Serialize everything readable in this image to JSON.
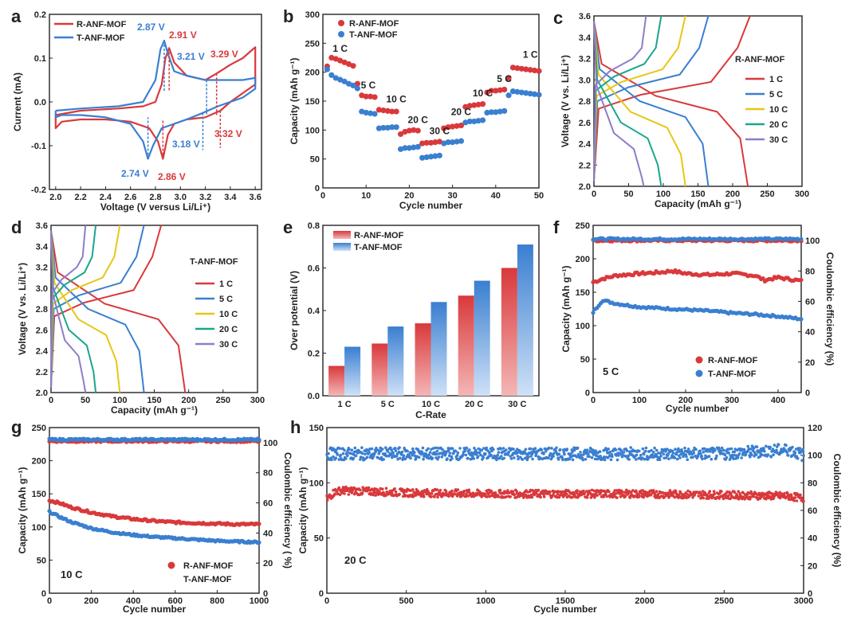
{
  "colors": {
    "red": "#d9393b",
    "blue": "#3a7fd0",
    "yellow": "#e8c617",
    "teal": "#1aa68b",
    "purple": "#8f7cc7"
  },
  "panels": {
    "a": {
      "letter": "a",
      "legend": [
        "R-ANF-MOF",
        "T-ANF-MOF"
      ],
      "annotations": [
        "2.87 V",
        "2.91 V",
        "3.21 V",
        "3.29 V",
        "3.18 V",
        "3.32 V",
        "2.74 V",
        "2.86 V"
      ]
    },
    "b": {
      "letter": "b",
      "legend": [
        "R-ANF-MOF",
        "T-ANF-MOF"
      ],
      "rate_labels": [
        "1 C",
        "5 C",
        "10 C",
        "20 C",
        "30 C",
        "20 C",
        "10 C",
        "5 C",
        "1 C"
      ]
    },
    "c": {
      "letter": "c",
      "sample": "R-ANF-MOF",
      "legend": [
        "1 C",
        "5 C",
        "10 C",
        "20 C",
        "30 C"
      ]
    },
    "d": {
      "letter": "d",
      "sample": "T-ANF-MOF",
      "legend": [
        "1 C",
        "5 C",
        "10 C",
        "20 C",
        "30 C"
      ]
    },
    "e": {
      "letter": "e",
      "legend": [
        "R-ANF-MOF",
        "T-ANF-MOF"
      ]
    },
    "f": {
      "letter": "f",
      "legend": [
        "R-ANF-MOF",
        "T-ANF-MOF"
      ],
      "rate": "5 C"
    },
    "g": {
      "letter": "g",
      "legend": [
        "R-ANF-MOF",
        "T-ANF-MOF"
      ],
      "rate": "10 C"
    },
    "h": {
      "letter": "h",
      "rate": "20 C"
    }
  },
  "chart_data": [
    {
      "id": "a",
      "type": "line",
      "title": "",
      "xlabel": "Voltage (V versus Li/Li⁺)",
      "ylabel": "Current (mA)",
      "xlim": [
        1.95,
        3.65
      ],
      "ylim": [
        -0.2,
        0.2
      ],
      "xticks": [
        "2.0",
        "2.2",
        "2.4",
        "2.6",
        "2.8",
        "3.0",
        "3.2",
        "3.4",
        "3.6"
      ],
      "yticks": [
        "-0.2",
        "-0.1",
        "0.0",
        "0.1",
        "0.2"
      ],
      "series": [
        {
          "name": "R-ANF-MOF",
          "x": [
            2.0,
            2.2,
            2.5,
            2.7,
            2.8,
            2.85,
            2.88,
            2.91,
            2.95,
            3.05,
            3.2,
            3.29,
            3.4,
            3.5,
            3.58,
            3.6,
            3.6,
            3.5,
            3.4,
            3.32,
            3.2,
            3.05,
            2.95,
            2.9,
            2.86,
            2.82,
            2.75,
            2.6,
            2.4,
            2.2,
            2.05,
            2.0,
            2.0
          ],
          "y": [
            -0.03,
            -0.02,
            -0.015,
            -0.01,
            0.0,
            0.04,
            0.1,
            0.123,
            0.09,
            0.06,
            0.05,
            0.065,
            0.085,
            0.1,
            0.12,
            0.125,
            0.04,
            0.02,
            0.0,
            -0.02,
            -0.035,
            -0.04,
            -0.05,
            -0.075,
            -0.13,
            -0.09,
            -0.06,
            -0.045,
            -0.04,
            -0.04,
            -0.045,
            -0.06,
            -0.03
          ]
        },
        {
          "name": "T-ANF-MOF",
          "x": [
            2.0,
            2.2,
            2.5,
            2.7,
            2.8,
            2.84,
            2.87,
            2.9,
            2.95,
            3.05,
            3.2,
            3.3,
            3.4,
            3.5,
            3.6,
            3.6,
            3.5,
            3.4,
            3.3,
            3.18,
            3.05,
            2.95,
            2.85,
            2.78,
            2.74,
            2.7,
            2.6,
            2.4,
            2.2,
            2.05,
            2.0,
            2.0
          ],
          "y": [
            -0.02,
            -0.015,
            -0.01,
            0.0,
            0.05,
            0.12,
            0.14,
            0.11,
            0.07,
            0.06,
            0.05,
            0.05,
            0.05,
            0.05,
            0.055,
            0.03,
            0.01,
            0.0,
            -0.01,
            -0.025,
            -0.04,
            -0.05,
            -0.06,
            -0.1,
            -0.13,
            -0.09,
            -0.05,
            -0.035,
            -0.03,
            -0.03,
            -0.035,
            -0.02
          ]
        }
      ]
    },
    {
      "id": "b",
      "type": "scatter",
      "title": "",
      "xlabel": "Cycle number",
      "ylabel": "Capacity (mAh g⁻¹)",
      "xlim": [
        0,
        50
      ],
      "ylim": [
        0,
        300
      ],
      "xticks": [
        "0",
        "10",
        "20",
        "30",
        "40",
        "50"
      ],
      "yticks": [
        "0",
        "50",
        "100",
        "150",
        "200",
        "250",
        "300"
      ],
      "series": [
        {
          "name": "R-ANF-MOF",
          "x": [
            1,
            2,
            3,
            4,
            5,
            6,
            7,
            8,
            9,
            10,
            11,
            12,
            13,
            14,
            15,
            16,
            17,
            18,
            19,
            20,
            21,
            22,
            23,
            24,
            25,
            26,
            27,
            28,
            29,
            30,
            31,
            32,
            33,
            34,
            35,
            36,
            37,
            38,
            39,
            40,
            41,
            42,
            43,
            44,
            45,
            46,
            47,
            48,
            49,
            50
          ],
          "y": [
            210,
            225,
            223,
            220,
            217,
            214,
            211,
            180,
            160,
            158,
            158,
            157,
            135,
            134,
            133,
            132,
            132,
            93,
            97,
            99,
            100,
            99,
            77,
            78,
            78,
            79,
            80,
            103,
            105,
            106,
            107,
            108,
            140,
            142,
            143,
            144,
            145,
            165,
            168,
            168,
            169,
            170,
            190,
            208,
            207,
            206,
            205,
            204,
            203,
            202
          ]
        },
        {
          "name": "T-ANF-MOF",
          "x": [
            1,
            2,
            3,
            4,
            5,
            6,
            7,
            8,
            9,
            10,
            11,
            12,
            13,
            14,
            15,
            16,
            17,
            18,
            19,
            20,
            21,
            22,
            23,
            24,
            25,
            26,
            27,
            28,
            29,
            30,
            31,
            32,
            33,
            34,
            35,
            36,
            37,
            38,
            39,
            40,
            41,
            42,
            43,
            44,
            45,
            46,
            47,
            48,
            49,
            50
          ],
          "y": [
            205,
            195,
            190,
            187,
            184,
            180,
            177,
            172,
            132,
            130,
            129,
            128,
            103,
            104,
            104,
            105,
            105,
            67,
            69,
            69,
            70,
            71,
            52,
            53,
            54,
            55,
            56,
            77,
            79,
            79,
            80,
            81,
            113,
            115,
            115,
            116,
            117,
            130,
            131,
            131,
            132,
            133,
            160,
            167,
            166,
            165,
            164,
            163,
            162,
            161
          ]
        }
      ]
    },
    {
      "id": "c",
      "type": "line",
      "title": "R-ANF-MOF",
      "xlabel": "Capacity (mAh g⁻¹)",
      "ylabel": "Voltage (V vs. Li/Li⁺)",
      "xlim": [
        0,
        300
      ],
      "ylim": [
        2.0,
        3.6
      ],
      "xticks": [
        "0",
        "50",
        "100",
        "150",
        "200",
        "250",
        "300"
      ],
      "yticks": [
        "2.0",
        "2.2",
        "2.4",
        "2.6",
        "2.8",
        "3.0",
        "3.2",
        "3.4",
        "3.6"
      ],
      "series": [
        {
          "name": "1 C",
          "discharge_end": 222,
          "charge_end": 225
        },
        {
          "name": "5 C",
          "discharge_end": 165,
          "charge_end": 165
        },
        {
          "name": "10 C",
          "discharge_end": 132,
          "charge_end": 132
        },
        {
          "name": "20 C",
          "discharge_end": 97,
          "charge_end": 97
        },
        {
          "name": "30 C",
          "discharge_end": 72,
          "charge_end": 75
        }
      ]
    },
    {
      "id": "d",
      "type": "line",
      "title": "T-ANF-MOF",
      "xlabel": "Capacity (mAh g⁻¹)",
      "ylabel": "Voltage (V vs. Li/Li⁺)",
      "xlim": [
        0,
        300
      ],
      "ylim": [
        2.0,
        3.6
      ],
      "xticks": [
        "0",
        "50",
        "100",
        "150",
        "200",
        "250",
        "300"
      ],
      "yticks": [
        "2.0",
        "2.2",
        "2.4",
        "2.6",
        "2.8",
        "3.0",
        "3.2",
        "3.4",
        "3.6"
      ],
      "series": [
        {
          "name": "1 C",
          "discharge_end": 195,
          "charge_end": 160
        },
        {
          "name": "5 C",
          "discharge_end": 135,
          "charge_end": 135
        },
        {
          "name": "10 C",
          "discharge_end": 100,
          "charge_end": 100
        },
        {
          "name": "20 C",
          "discharge_end": 65,
          "charge_end": 65
        },
        {
          "name": "30 C",
          "discharge_end": 50,
          "charge_end": 50
        }
      ]
    },
    {
      "id": "e",
      "type": "bar",
      "title": "",
      "xlabel": "C-Rate",
      "ylabel": "Over potential (V)",
      "ylim": [
        0,
        0.8
      ],
      "yticks": [
        "0.0",
        "0.2",
        "0.4",
        "0.6",
        "0.8"
      ],
      "categories": [
        "1 C",
        "5 C",
        "10 C",
        "20 C",
        "30 C"
      ],
      "series": [
        {
          "name": "R-ANF-MOF",
          "values": [
            0.14,
            0.245,
            0.34,
            0.47,
            0.6
          ]
        },
        {
          "name": "T-ANF-MOF",
          "values": [
            0.23,
            0.325,
            0.44,
            0.54,
            0.71
          ]
        }
      ]
    },
    {
      "id": "f",
      "type": "scatter",
      "title": "",
      "xlabel": "Cycle number",
      "ylabel": "Capacity (mAh g⁻¹)",
      "y2label": "Coulombic efficiency (%)",
      "xlim": [
        0,
        450
      ],
      "ylim": [
        0,
        250
      ],
      "y2lim": [
        0,
        110
      ],
      "xticks": [
        "0",
        "100",
        "200",
        "300",
        "400"
      ],
      "yticks": [
        "0",
        "50",
        "100",
        "150",
        "200",
        "250"
      ],
      "y2ticks": [
        "0",
        "20",
        "40",
        "60",
        "80",
        "100"
      ],
      "series": [
        {
          "name": "R-ANF-MOF",
          "x": [
            0,
            20,
            50,
            100,
            150,
            170,
            200,
            250,
            300,
            350,
            370,
            400,
            450
          ],
          "y": [
            165,
            170,
            175,
            178,
            180,
            182,
            178,
            176,
            178,
            175,
            168,
            172,
            167
          ]
        },
        {
          "name": "T-ANF-MOF",
          "x": [
            0,
            20,
            50,
            100,
            150,
            200,
            250,
            300,
            350,
            400,
            450
          ],
          "y": [
            120,
            138,
            133,
            128,
            126,
            124,
            122,
            119,
            117,
            114,
            110
          ]
        },
        {
          "name": "R-ANF-MOF CE",
          "x": [
            0,
            450
          ],
          "y": [
            100,
            100
          ]
        },
        {
          "name": "T-ANF-MOF CE",
          "x": [
            0,
            450
          ],
          "y": [
            101,
            101
          ]
        }
      ]
    },
    {
      "id": "g",
      "type": "scatter",
      "title": "",
      "xlabel": "Cycle number",
      "ylabel": "Capacity (mAh g⁻¹)",
      "y2label": "Coulombic efficiency ( %)",
      "xlim": [
        0,
        1000
      ],
      "ylim": [
        0,
        250
      ],
      "y2lim": [
        0,
        110
      ],
      "xticks": [
        "0",
        "200",
        "400",
        "600",
        "800",
        "1000"
      ],
      "yticks": [
        "0",
        "50",
        "100",
        "150",
        "200",
        "250"
      ],
      "y2ticks": [
        "0",
        "20",
        "40",
        "60",
        "80",
        "100"
      ],
      "series": [
        {
          "name": "R-ANF-MOF",
          "x": [
            0,
            50,
            100,
            200,
            300,
            400,
            500,
            600,
            700,
            800,
            900,
            1000
          ],
          "y": [
            140,
            136,
            130,
            122,
            116,
            112,
            109,
            107,
            106,
            105,
            104,
            104
          ]
        },
        {
          "name": "T-ANF-MOF",
          "x": [
            0,
            50,
            100,
            200,
            300,
            400,
            500,
            600,
            700,
            800,
            900,
            1000
          ],
          "y": [
            123,
            115,
            108,
            98,
            92,
            88,
            85,
            83,
            81,
            79,
            78,
            77
          ]
        },
        {
          "name": "R-ANF-MOF CE",
          "x": [
            0,
            1000
          ],
          "y": [
            101,
            101
          ]
        },
        {
          "name": "T-ANF-MOF CE",
          "x": [
            0,
            1000
          ],
          "y": [
            102,
            102
          ]
        }
      ]
    },
    {
      "id": "h",
      "type": "scatter",
      "title": "",
      "xlabel": "Cycle number",
      "ylabel": "Capacity (mAh g⁻¹)",
      "y2label": "Coulombic efficiency (%)",
      "xlim": [
        0,
        3000
      ],
      "ylim": [
        0,
        150
      ],
      "y2lim": [
        0,
        120
      ],
      "xticks": [
        "0",
        "500",
        "1000",
        "1500",
        "2000",
        "2500",
        "3000"
      ],
      "yticks": [
        "0",
        "50",
        "100",
        "150"
      ],
      "y2ticks": [
        "0",
        "20",
        "40",
        "60",
        "80",
        "100",
        "120"
      ],
      "series": [
        {
          "name": "Capacity",
          "x": [
            0,
            50,
            100,
            500,
            1000,
            1500,
            2000,
            2500,
            2900,
            3000
          ],
          "y": [
            85,
            92,
            93,
            91,
            90,
            90,
            90,
            89,
            88,
            86
          ]
        },
        {
          "name": "Coulombic efficiency",
          "x": [
            0,
            500,
            1000,
            1500,
            2000,
            2500,
            2900,
            3000
          ],
          "y": [
            101,
            101,
            101,
            101,
            101,
            101,
            104,
            100
          ]
        }
      ]
    }
  ]
}
